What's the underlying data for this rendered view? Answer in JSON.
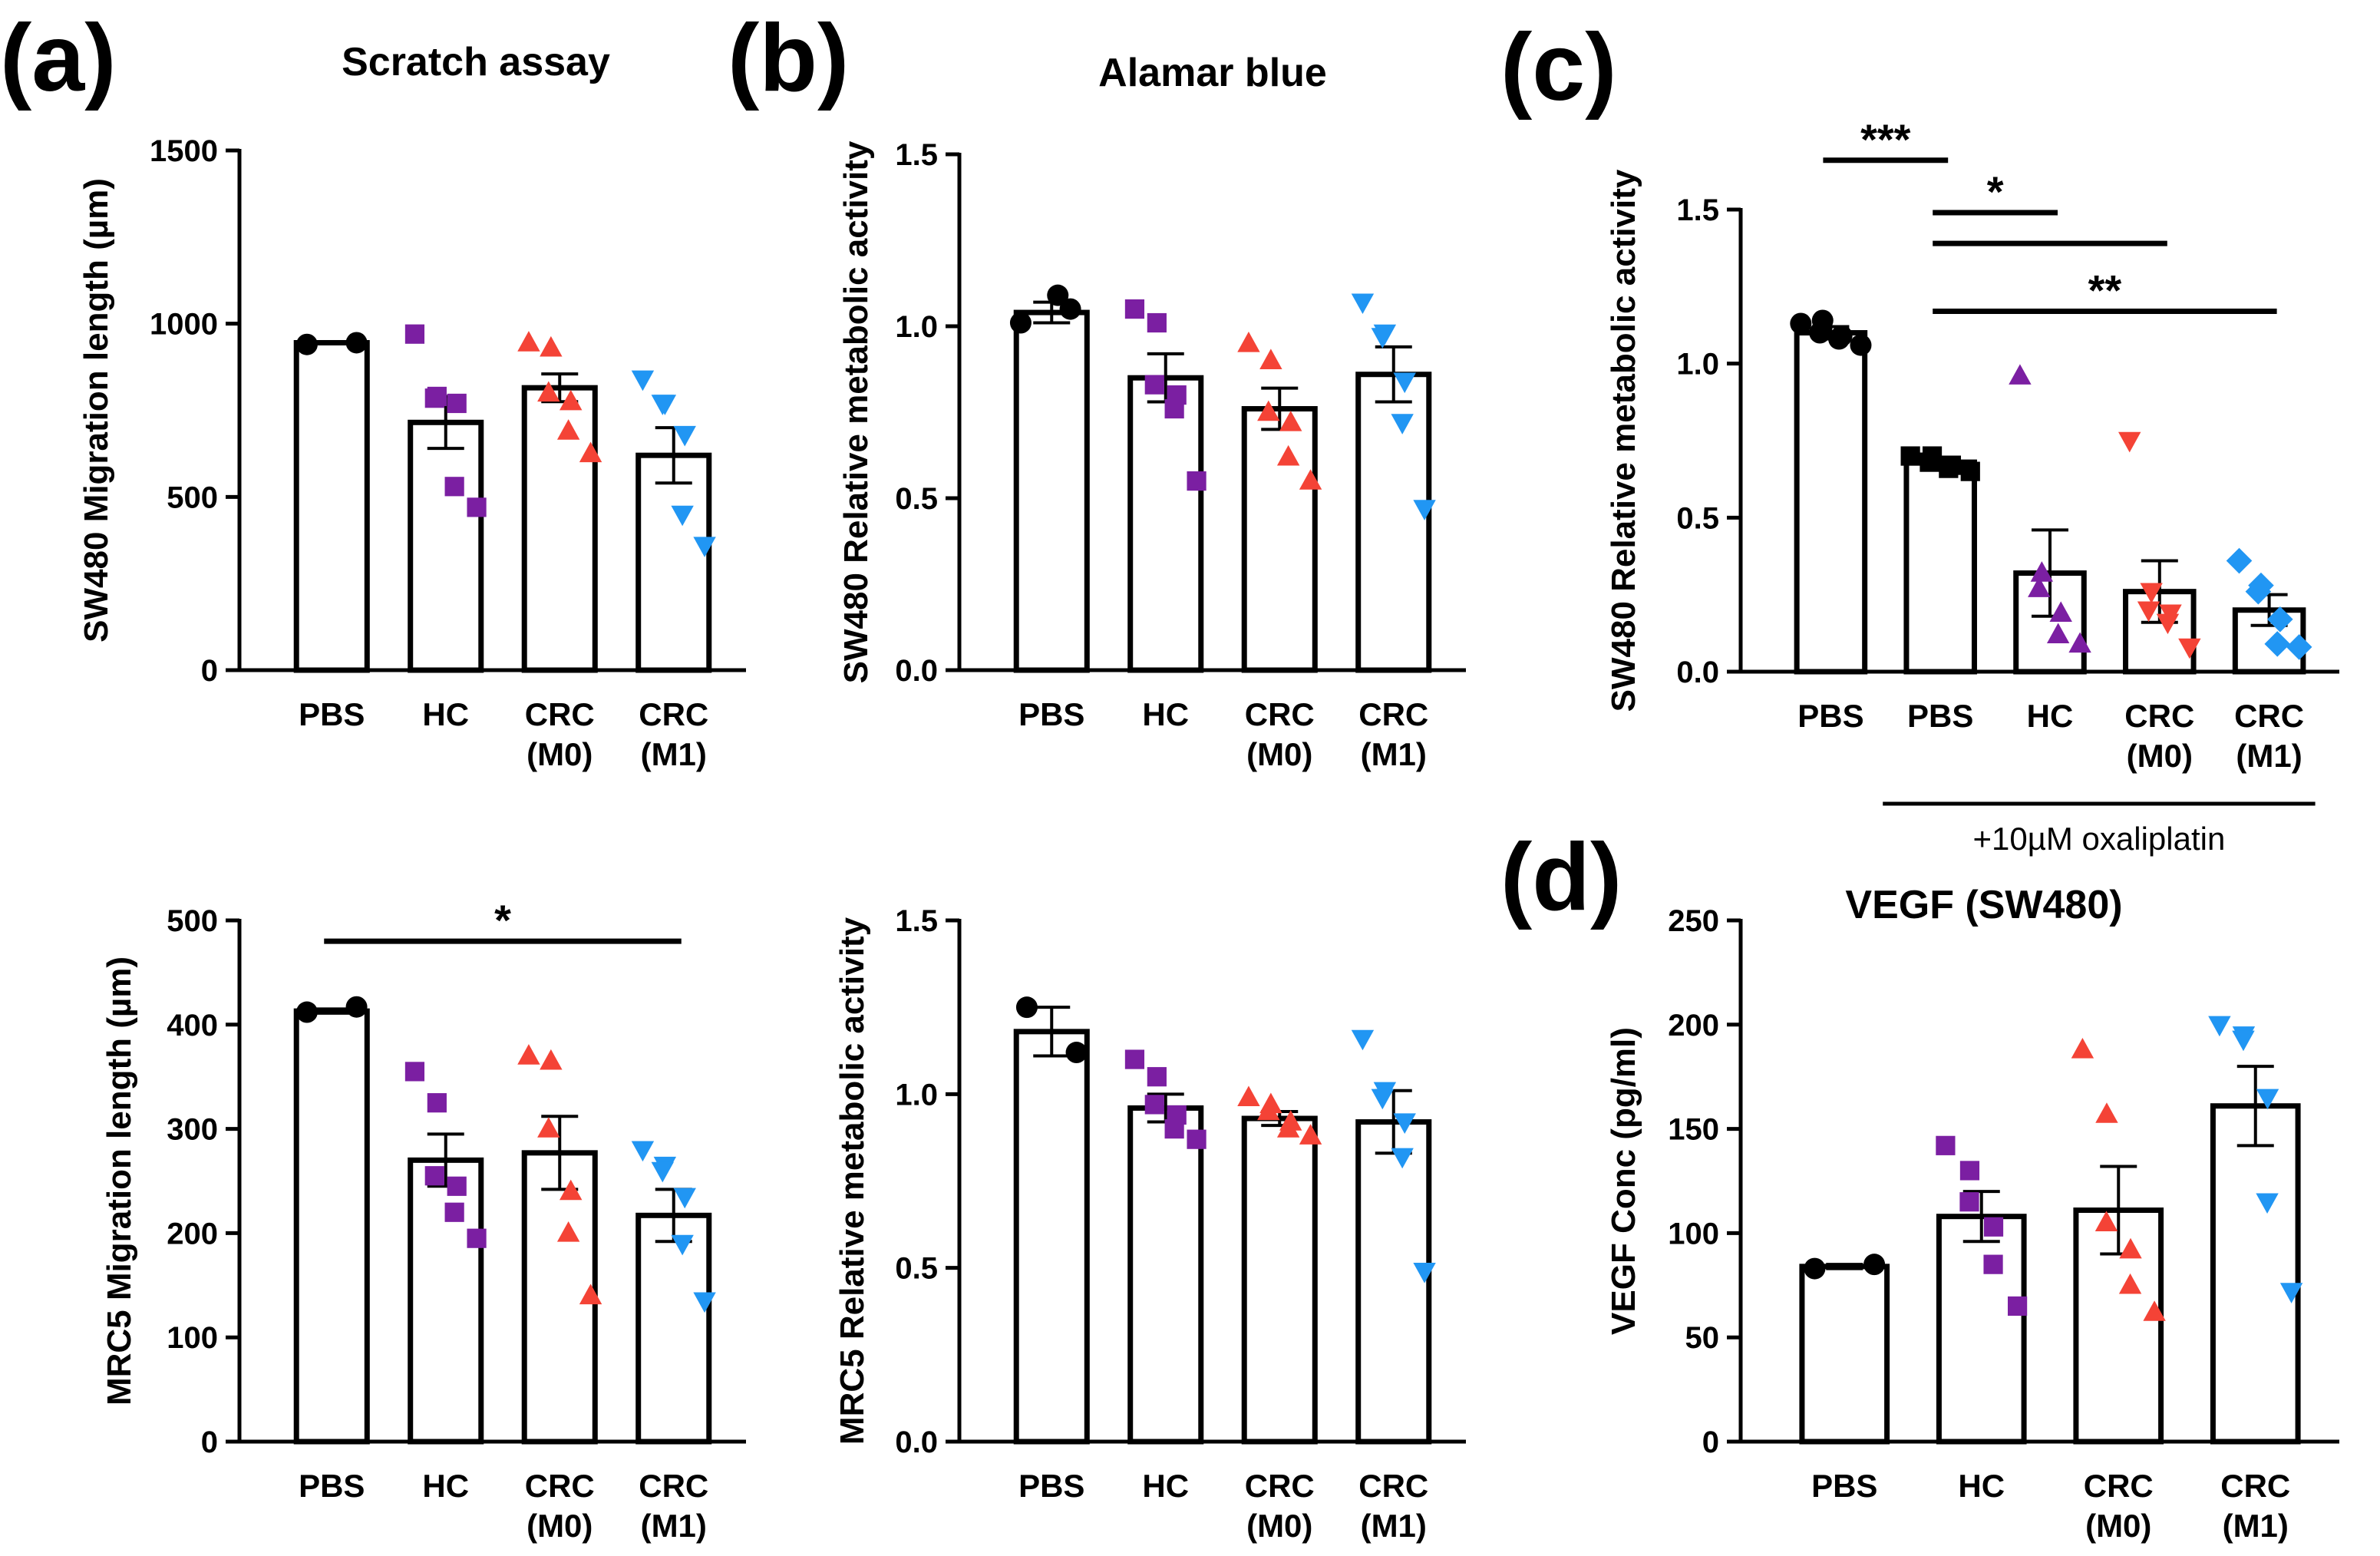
{
  "figure": {
    "panel_labels": [
      "(a)",
      "(b)",
      "(c)",
      "(d)"
    ],
    "oxaliplatin_label": "+10µM oxaliplatin"
  },
  "colors": {
    "PBS": "#000000",
    "HC": "#7B1FA2",
    "CRC (M0)": "#F44336",
    "CRC (M1)": "#2196F3"
  },
  "chart_data": [
    {
      "id": "a-top",
      "type": "bar",
      "title": "Scratch assay",
      "ylabel": "SW480 Migration length (µm)",
      "ylim": [
        0,
        1500
      ],
      "yticks": [
        0,
        500,
        1000,
        1500
      ],
      "categories": [
        [
          "PBS"
        ],
        [
          "HC"
        ],
        [
          "CRC",
          "(M0)"
        ],
        [
          "CRC",
          "(M1)"
        ]
      ],
      "values": [
        945,
        715,
        815,
        620
      ],
      "sem": [
        0,
        75,
        40,
        80
      ],
      "points": [
        [
          940,
          945
        ],
        [
          970,
          790,
          785,
          770,
          530,
          470
        ],
        [
          945,
          930,
          800,
          775,
          690,
          625
        ],
        [
          840,
          770,
          770,
          680,
          450,
          360
        ]
      ],
      "markers": [
        "circle",
        "square",
        "triangle-up",
        "triangle-down"
      ],
      "significance": []
    },
    {
      "id": "b-top",
      "type": "bar",
      "title": "Alamar blue",
      "ylabel": "SW480 Relative metabolic activity",
      "ylim": [
        0,
        1.5
      ],
      "yticks": [
        0.0,
        0.5,
        1.0,
        1.5
      ],
      "categories": [
        [
          "PBS"
        ],
        [
          "HC"
        ],
        [
          "CRC",
          "(M0)"
        ],
        [
          "CRC",
          "(M1)"
        ]
      ],
      "values": [
        1.04,
        0.85,
        0.76,
        0.86
      ],
      "sem": [
        0.03,
        0.07,
        0.06,
        0.08
      ],
      "points": [
        [
          1.01,
          1.09,
          1.05
        ],
        [
          1.05,
          1.01,
          0.83,
          0.8,
          0.76,
          0.55
        ],
        [
          0.95,
          0.9,
          0.75,
          0.72,
          0.62,
          0.55
        ],
        [
          1.07,
          0.98,
          0.97,
          0.84,
          0.72,
          0.47
        ]
      ],
      "markers": [
        "circle",
        "square",
        "triangle-up",
        "triangle-down"
      ],
      "significance": []
    },
    {
      "id": "c",
      "type": "bar",
      "title": "",
      "ylabel": "SW480 Relative metabolic activity",
      "ylim": [
        0,
        1.5
      ],
      "yticks": [
        0.0,
        0.5,
        1.0,
        1.5
      ],
      "categories": [
        [
          "PBS"
        ],
        [
          "PBS"
        ],
        [
          "HC"
        ],
        [
          "CRC",
          "(M0)"
        ],
        [
          "CRC",
          "(M1)"
        ]
      ],
      "values": [
        1.1,
        0.68,
        0.32,
        0.26,
        0.2
      ],
      "sem": [
        0.02,
        0.01,
        0.14,
        0.1,
        0.05
      ],
      "points": [
        [
          1.13,
          1.14,
          1.1,
          1.09,
          1.08,
          1.06
        ],
        [
          0.7,
          0.7,
          0.68,
          0.67,
          0.66,
          0.65
        ],
        [
          0.96,
          0.32,
          0.27,
          0.19,
          0.12,
          0.09
        ],
        [
          0.75,
          0.26,
          0.2,
          0.19,
          0.16,
          0.08
        ],
        [
          0.36,
          0.28,
          0.26,
          0.17,
          0.09,
          0.08
        ]
      ],
      "markers": [
        "circle",
        "square",
        "triangle-up",
        "triangle-down",
        "diamond"
      ],
      "significance": [
        {
          "from": 0,
          "to": 1,
          "y": 1.66,
          "label": "***"
        },
        {
          "from": 1,
          "to": 2,
          "y": 1.49,
          "label": "*"
        },
        {
          "from": 1,
          "to": 3,
          "y": 1.39,
          "label": ""
        },
        {
          "from": 1,
          "to": 4,
          "y": 1.17,
          "label": "**"
        }
      ],
      "group_bar": {
        "from": 1,
        "to": 4
      }
    },
    {
      "id": "a-bottom",
      "type": "bar",
      "title": "",
      "ylabel": "MRC5 Migration length (µm)",
      "ylim": [
        0,
        500
      ],
      "yticks": [
        0,
        100,
        200,
        300,
        400,
        500
      ],
      "categories": [
        [
          "PBS"
        ],
        [
          "HC"
        ],
        [
          "CRC",
          "(M0)"
        ],
        [
          "CRC",
          "(M1)"
        ]
      ],
      "values": [
        413,
        270,
        277,
        217
      ],
      "sem": [
        2,
        25,
        35,
        25
      ],
      "points": [
        [
          412,
          417
        ],
        [
          355,
          325,
          255,
          245,
          220,
          195
        ],
        [
          370,
          365,
          300,
          240,
          200,
          140
        ],
        [
          280,
          265,
          260,
          235,
          190,
          135
        ]
      ],
      "markers": [
        "circle",
        "square",
        "triangle-up",
        "triangle-down"
      ],
      "significance": [
        {
          "from": 0,
          "to": 3,
          "y": 480,
          "label": "*"
        }
      ]
    },
    {
      "id": "b-bottom",
      "type": "bar",
      "title": "",
      "ylabel": "MRC5 Relative metabolic activity",
      "ylim": [
        0,
        1.5
      ],
      "yticks": [
        0.0,
        0.5,
        1.0,
        1.5
      ],
      "categories": [
        [
          "PBS"
        ],
        [
          "HC"
        ],
        [
          "CRC",
          "(M0)"
        ],
        [
          "CRC",
          "(M1)"
        ]
      ],
      "values": [
        1.18,
        0.96,
        0.93,
        0.92
      ],
      "sem": [
        0.07,
        0.04,
        0.02,
        0.09
      ],
      "points": [
        [
          1.25,
          1.12
        ],
        [
          1.1,
          1.05,
          0.97,
          0.94,
          0.9,
          0.87
        ],
        [
          0.99,
          0.97,
          0.95,
          0.92,
          0.9,
          0.88
        ],
        [
          1.16,
          1.01,
          0.99,
          0.92,
          0.82,
          0.49
        ]
      ],
      "markers": [
        "circle",
        "square",
        "triangle-up",
        "triangle-down"
      ],
      "significance": []
    },
    {
      "id": "d",
      "type": "bar",
      "title": "VEGF (SW480)",
      "ylabel": "VEGF Conc (pg/ml)",
      "ylim": [
        0,
        250
      ],
      "yticks": [
        0,
        50,
        100,
        150,
        200,
        250
      ],
      "categories": [
        [
          "PBS"
        ],
        [
          "HC"
        ],
        [
          "CRC",
          "(M0)"
        ],
        [
          "CRC",
          "(M1)"
        ]
      ],
      "values": [
        84,
        108,
        111,
        161
      ],
      "sem": [
        1,
        12,
        21,
        19
      ],
      "points": [
        [
          83,
          85
        ],
        [
          142,
          130,
          115,
          103,
          85,
          65
        ],
        [
          188,
          157,
          105,
          92,
          75,
          62
        ],
        [
          200,
          195,
          193,
          165,
          115,
          72
        ]
      ],
      "markers": [
        "circle",
        "square",
        "triangle-up",
        "triangle-down"
      ],
      "significance": []
    }
  ]
}
